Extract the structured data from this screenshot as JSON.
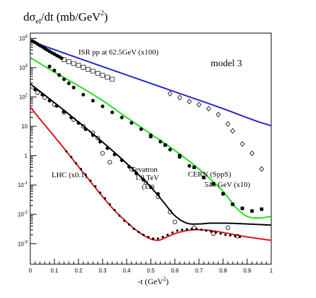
{
  "chart_data": {
    "type": "scatter",
    "title": "",
    "ylabel_base": "dσ",
    "ylabel_sub": "el",
    "ylabel_rest": "/dt  (mb/GeV",
    "ylabel_sup": "2",
    "ylabel_end": ")",
    "xlabel_base": "-t  (GeV",
    "xlabel_sup": "2",
    "xlabel_end": ")",
    "x_range": [
      0,
      1
    ],
    "y_range": [
      0.0002,
      15000
    ],
    "y_scale": "log",
    "model_label": "model 3",
    "x_ticks": [
      {
        "value": 0,
        "label": "0"
      },
      {
        "value": 0.1,
        "label": "0.1"
      },
      {
        "value": 0.2,
        "label": "0.2"
      },
      {
        "value": 0.3,
        "label": "0.3"
      },
      {
        "value": 0.4,
        "label": "0.4"
      },
      {
        "value": 0.5,
        "label": "0.5"
      },
      {
        "value": 0.6,
        "label": "0.6"
      },
      {
        "value": 0.7,
        "label": "0.7"
      },
      {
        "value": 0.8,
        "label": "0.8"
      },
      {
        "value": 0.9,
        "label": "0.9"
      },
      {
        "value": 1,
        "label": "1"
      }
    ],
    "y_ticks": [
      {
        "value": 10000,
        "base": "10",
        "exp": "4"
      },
      {
        "value": 1000,
        "base": "10",
        "exp": "3"
      },
      {
        "value": 100,
        "base": "10",
        "exp": "2"
      },
      {
        "value": 10,
        "base": "10",
        "exp": ""
      },
      {
        "value": 1,
        "base": "1",
        "exp": ""
      },
      {
        "value": 0.1,
        "base": "10",
        "exp": "-1"
      },
      {
        "value": 0.01,
        "base": "10",
        "exp": "-2"
      },
      {
        "value": 0.001,
        "base": "10",
        "exp": "-3"
      }
    ],
    "annotations": [
      {
        "id": "isr",
        "lines": [
          "ISR pp at 62.5GeV   (x100)"
        ]
      },
      {
        "id": "cern",
        "lines": [
          "CERN (SppS)",
          "546 GeV  (x10)"
        ]
      },
      {
        "id": "tevatron",
        "lines": [
          "Tevatron",
          "1.8 TeV",
          "(x1)"
        ]
      },
      {
        "id": "lhc",
        "lines": [
          "LHC (x0.1)"
        ]
      }
    ],
    "curves": [
      {
        "id": "isr",
        "color": "#2222cc",
        "points": [
          [
            0.0,
            8000
          ],
          [
            0.2,
            2100
          ],
          [
            0.4,
            560
          ],
          [
            0.6,
            150
          ],
          [
            0.8,
            40
          ],
          [
            0.95,
            14
          ],
          [
            1.0,
            10.5
          ]
        ]
      },
      {
        "id": "cern",
        "color": "#22dd22",
        "points": [
          [
            0.0,
            2200
          ],
          [
            0.1,
            700
          ],
          [
            0.2,
            240
          ],
          [
            0.3,
            75
          ],
          [
            0.4,
            20
          ],
          [
            0.5,
            5.5
          ],
          [
            0.6,
            1.5
          ],
          [
            0.7,
            0.35
          ],
          [
            0.8,
            0.06
          ],
          [
            0.86,
            0.015
          ],
          [
            0.9,
            0.0085
          ],
          [
            0.95,
            0.0075
          ],
          [
            1.0,
            0.0085
          ]
        ]
      },
      {
        "id": "tevatron",
        "color": "#000000",
        "points": [
          [
            0.0,
            280
          ],
          [
            0.1,
            64
          ],
          [
            0.2,
            14
          ],
          [
            0.3,
            2.9
          ],
          [
            0.4,
            0.54
          ],
          [
            0.5,
            0.085
          ],
          [
            0.55,
            0.028
          ],
          [
            0.6,
            0.009
          ],
          [
            0.65,
            0.005
          ],
          [
            0.7,
            0.0047
          ],
          [
            0.75,
            0.005
          ],
          [
            0.8,
            0.005
          ],
          [
            0.9,
            0.0047
          ],
          [
            1.0,
            0.0043
          ]
        ]
      },
      {
        "id": "lhc",
        "color": "#dd1111",
        "points": [
          [
            0.0,
            45
          ],
          [
            0.05,
            14
          ],
          [
            0.1,
            4.5
          ],
          [
            0.15,
            1.4
          ],
          [
            0.2,
            0.42
          ],
          [
            0.25,
            0.13
          ],
          [
            0.3,
            0.04
          ],
          [
            0.35,
            0.0135
          ],
          [
            0.4,
            0.0055
          ],
          [
            0.45,
            0.0025
          ],
          [
            0.5,
            0.00145
          ],
          [
            0.53,
            0.0013
          ],
          [
            0.56,
            0.0016
          ],
          [
            0.6,
            0.0022
          ],
          [
            0.65,
            0.0028
          ],
          [
            0.7,
            0.003
          ],
          [
            0.75,
            0.0028
          ],
          [
            0.8,
            0.0024
          ],
          [
            0.9,
            0.0017
          ],
          [
            1.0,
            0.0013
          ]
        ]
      }
    ],
    "series": [
      {
        "id": "isr-data",
        "marker": "filled-circle",
        "color": "#000000",
        "points": [
          [
            0.01,
            8000
          ],
          [
            0.02,
            7200
          ],
          [
            0.03,
            6400
          ],
          [
            0.04,
            5700
          ],
          [
            0.05,
            5100
          ],
          [
            0.06,
            4500
          ],
          [
            0.07,
            4000
          ],
          [
            0.08,
            3600
          ],
          [
            0.09,
            3200
          ],
          [
            0.1,
            2900
          ],
          [
            0.11,
            2600
          ],
          [
            0.12,
            2350
          ],
          [
            0.13,
            2100
          ]
        ]
      },
      {
        "id": "isr-open",
        "marker": "open-square",
        "color": "#000000",
        "points": [
          [
            0.14,
            1850
          ],
          [
            0.16,
            1600
          ],
          [
            0.18,
            1380
          ],
          [
            0.2,
            1200
          ],
          [
            0.22,
            1030
          ],
          [
            0.24,
            880
          ],
          [
            0.26,
            760
          ],
          [
            0.28,
            640
          ],
          [
            0.3,
            550
          ],
          [
            0.32,
            470
          ],
          [
            0.34,
            400
          ]
        ]
      },
      {
        "id": "isr-diamond",
        "marker": "open-diamond",
        "color": "#000000",
        "points": [
          [
            0.58,
            130
          ],
          [
            0.62,
            95
          ],
          [
            0.66,
            70
          ],
          [
            0.7,
            55
          ],
          [
            0.74,
            40
          ],
          [
            0.78,
            25
          ],
          [
            0.82,
            12
          ],
          [
            0.84,
            7
          ],
          [
            0.88,
            2.5
          ],
          [
            0.92,
            1.2
          ],
          [
            0.96,
            0.35
          ]
        ]
      },
      {
        "id": "cern-data",
        "marker": "filled-circle",
        "color": "#000000",
        "points": [
          [
            0.08,
            1100
          ],
          [
            0.1,
            800
          ],
          [
            0.12,
            560
          ],
          [
            0.14,
            400
          ],
          [
            0.16,
            290
          ],
          [
            0.18,
            210
          ],
          [
            0.22,
            120
          ],
          [
            0.26,
            75
          ],
          [
            0.3,
            48
          ],
          [
            0.34,
            30
          ],
          [
            0.38,
            20
          ],
          [
            0.42,
            13
          ],
          [
            0.46,
            8
          ],
          [
            0.5,
            5
          ],
          [
            0.54,
            3
          ],
          [
            0.58,
            1.6
          ],
          [
            0.62,
            0.9
          ],
          [
            0.66,
            0.45
          ]
        ]
      },
      {
        "id": "cern-squares",
        "marker": "filled-square",
        "color": "#000000",
        "points": [
          [
            0.5,
            4.5
          ],
          [
            0.56,
            2.3
          ],
          [
            0.62,
            1.0
          ],
          [
            0.68,
            0.4
          ],
          [
            0.72,
            0.18
          ],
          [
            0.76,
            0.11
          ],
          [
            0.8,
            0.05
          ],
          [
            0.84,
            0.022
          ],
          [
            0.88,
            0.016
          ],
          [
            0.92,
            0.013
          ],
          [
            0.96,
            0.015
          ]
        ]
      },
      {
        "id": "tevatron-open",
        "marker": "open-circle",
        "color": "#000000",
        "points": [
          [
            0.03,
            140
          ],
          [
            0.06,
            95
          ],
          [
            0.1,
            55
          ],
          [
            0.14,
            30
          ],
          [
            0.18,
            17
          ],
          [
            0.22,
            10
          ],
          [
            0.26,
            6
          ],
          [
            0.28,
            4
          ],
          [
            0.3,
            1.2
          ],
          [
            0.33,
            0.6
          ],
          [
            0.42,
            0.35
          ],
          [
            0.48,
            0.12
          ],
          [
            0.53,
            0.04
          ],
          [
            0.58,
            0.012
          ],
          [
            0.6,
            0.0055
          ],
          [
            0.68,
            0.0035
          ],
          [
            0.76,
            0.0022
          ],
          [
            0.82,
            0.0035
          ],
          [
            0.86,
            0.0018
          ]
        ]
      },
      {
        "id": "tevatron-data",
        "marker": "filled-circle",
        "color": "#000000",
        "points": [
          [
            0.02,
            180
          ],
          [
            0.05,
            120
          ],
          [
            0.08,
            75
          ],
          [
            0.11,
            50
          ],
          [
            0.14,
            32
          ],
          [
            0.17,
            20
          ],
          [
            0.2,
            13
          ],
          [
            0.23,
            8
          ],
          [
            0.26,
            5
          ],
          [
            0.29,
            3
          ],
          [
            0.32,
            1.8
          ],
          [
            0.35,
            1.1
          ],
          [
            0.38,
            0.7
          ],
          [
            0.41,
            0.42
          ],
          [
            0.44,
            0.25
          ],
          [
            0.47,
            0.15
          ],
          [
            0.5,
            0.085
          ],
          [
            0.53,
            0.05
          ]
        ]
      },
      {
        "id": "lhc-data",
        "marker": "small-dot",
        "color": "#000000",
        "points": [
          [
            0.15,
            1.4
          ],
          [
            0.17,
            0.9
          ],
          [
            0.19,
            0.55
          ],
          [
            0.21,
            0.35
          ],
          [
            0.23,
            0.22
          ],
          [
            0.25,
            0.14
          ],
          [
            0.27,
            0.09
          ],
          [
            0.29,
            0.055
          ],
          [
            0.31,
            0.035
          ],
          [
            0.33,
            0.022
          ],
          [
            0.35,
            0.014
          ],
          [
            0.37,
            0.009
          ],
          [
            0.39,
            0.006
          ],
          [
            0.41,
            0.0045
          ],
          [
            0.43,
            0.0032
          ],
          [
            0.45,
            0.0025
          ],
          [
            0.47,
            0.002
          ],
          [
            0.49,
            0.0017
          ],
          [
            0.51,
            0.0015
          ],
          [
            0.53,
            0.0015
          ],
          [
            0.55,
            0.0017
          ],
          [
            0.57,
            0.002
          ],
          [
            0.59,
            0.0024
          ],
          [
            0.61,
            0.0028
          ],
          [
            0.63,
            0.003
          ],
          [
            0.65,
            0.0031
          ],
          [
            0.67,
            0.0032
          ],
          [
            0.69,
            0.0032
          ],
          [
            0.71,
            0.003
          ],
          [
            0.73,
            0.0028
          ],
          [
            0.75,
            0.0026
          ],
          [
            0.77,
            0.0024
          ],
          [
            0.79,
            0.0022
          ],
          [
            0.81,
            0.002
          ],
          [
            0.83,
            0.0019
          ],
          [
            0.85,
            0.0018
          ],
          [
            0.87,
            0.0017
          ]
        ]
      }
    ]
  }
}
